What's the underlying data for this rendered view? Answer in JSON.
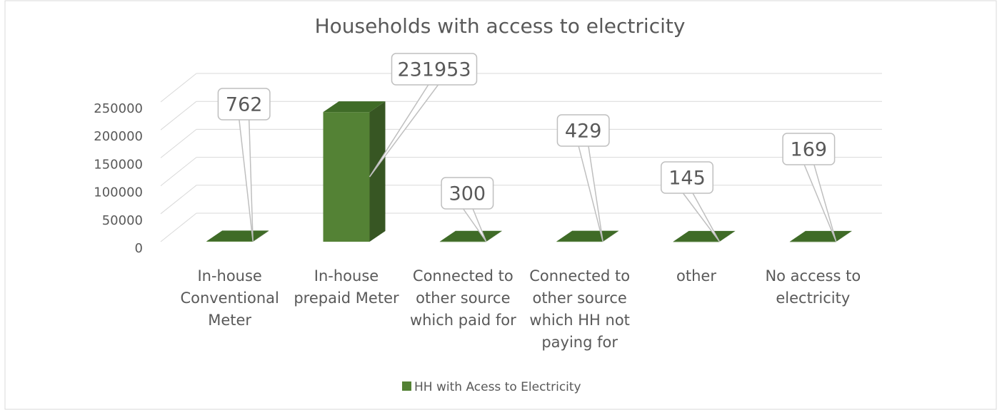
{
  "chart_data": {
    "type": "bar",
    "title": "Households with access to electricity",
    "categories": [
      "In-house Conventional Meter",
      "In-house prepaid Meter",
      "Connected to other source which paid for",
      "Connected to other source which HH not paying for",
      "other",
      "No access to electricity"
    ],
    "series": [
      {
        "name": "HH with Acess to Electricity",
        "color": "#548235",
        "values": [
          762,
          231953,
          300,
          429,
          145,
          169
        ]
      }
    ],
    "ylim": [
      0,
      250000
    ],
    "yticks": [
      0,
      50000,
      100000,
      150000,
      200000,
      250000
    ],
    "grid": true,
    "legend": "bottom"
  }
}
